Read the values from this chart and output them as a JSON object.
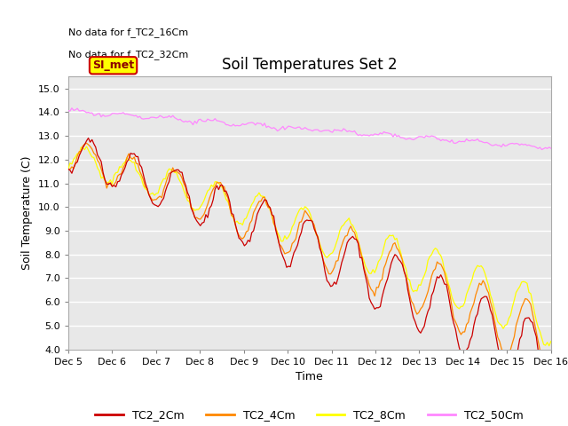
{
  "title": "Soil Temperatures Set 2",
  "xlabel": "Time",
  "ylabel": "Soil Temperature (C)",
  "ylim": [
    4.0,
    15.5
  ],
  "yticks": [
    4.0,
    5.0,
    6.0,
    7.0,
    8.0,
    9.0,
    10.0,
    11.0,
    12.0,
    13.0,
    14.0,
    15.0
  ],
  "xtick_labels": [
    "Dec 5",
    "Dec 6",
    "Dec 7",
    "Dec 8",
    "Dec 9",
    "Dec 10",
    "Dec 11",
    "Dec 12",
    "Dec 13",
    "Dec 14",
    "Dec 15",
    "Dec 16"
  ],
  "no_data_text": [
    "No data for f_TC2_16Cm",
    "No data for f_TC2_32Cm"
  ],
  "legend_label_text": "SI_met",
  "legend_entries": [
    "TC2_2Cm",
    "TC2_4Cm",
    "TC2_8Cm",
    "TC2_50Cm"
  ],
  "colors": {
    "TC2_2Cm": "#cc0000",
    "TC2_4Cm": "#ff8800",
    "TC2_8Cm": "#ffff00",
    "TC2_50Cm": "#ff88ff",
    "background": "#e8e8e8",
    "plot_bg": "#e8e8e8",
    "fig_bg": "#ffffff",
    "grid": "#ffffff"
  },
  "figsize": [
    6.4,
    4.8
  ],
  "dpi": 100
}
